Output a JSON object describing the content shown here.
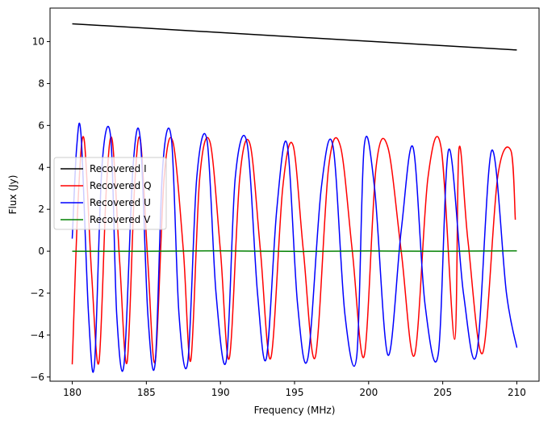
{
  "chart_data": {
    "type": "line",
    "title": "",
    "xlabel": "Frequency (MHz)",
    "ylabel": "Flux (Jy)",
    "xlim": [
      178.5,
      211.5
    ],
    "ylim": [
      -6.2,
      11.6
    ],
    "x_ticks": [
      180,
      185,
      190,
      195,
      200,
      205,
      210
    ],
    "y_ticks": [
      -6,
      -4,
      -2,
      0,
      2,
      4,
      6,
      8,
      10
    ],
    "x_range": [
      180,
      210
    ],
    "legend_position": "center-left",
    "grid": false,
    "series": [
      {
        "name": "Recovered I",
        "color": "#000000",
        "x": [
          180,
          210
        ],
        "values": [
          10.85,
          9.6
        ]
      },
      {
        "name": "Recovered Q",
        "color": "#ff0000",
        "x": [
          180.0,
          180.4,
          180.8,
          181.3,
          181.8,
          182.3,
          182.7,
          183.2,
          183.7,
          184.2,
          184.6,
          185.1,
          185.6,
          186.2,
          186.8,
          187.5,
          188.0,
          188.6,
          189.3,
          190.0,
          190.6,
          191.3,
          192.0,
          192.7,
          193.4,
          194.2,
          194.9,
          195.6,
          196.4,
          197.3,
          198.1,
          198.9,
          199.7,
          200.5,
          201.3,
          202.2,
          203.1,
          204.0,
          204.9,
          205.8,
          206.1,
          206.7,
          207.7,
          208.7,
          209.6,
          209.9
        ],
        "values": [
          -5.4,
          2.5,
          5.35,
          -1.0,
          -5.3,
          3.0,
          5.3,
          -0.5,
          -5.3,
          3.0,
          5.3,
          -0.5,
          -5.25,
          3.5,
          5.2,
          0.0,
          -5.2,
          3.5,
          5.2,
          0.0,
          -5.1,
          3.5,
          5.1,
          0.0,
          -5.1,
          3.0,
          5.05,
          0.0,
          -5.05,
          4.0,
          5.0,
          0.0,
          -5.0,
          4.0,
          4.95,
          0.0,
          -4.95,
          3.5,
          4.9,
          -4.2,
          4.9,
          0.5,
          -4.85,
          3.5,
          4.8,
          1.5
        ]
      },
      {
        "name": "Recovered U",
        "color": "#0000ff",
        "x": [
          180.0,
          180.3,
          180.6,
          181.1,
          181.5,
          182.0,
          182.6,
          183.0,
          183.5,
          184.1,
          184.6,
          185.1,
          185.6,
          186.1,
          186.7,
          187.2,
          187.8,
          188.4,
          189.1,
          189.7,
          190.4,
          191.0,
          191.8,
          192.5,
          193.1,
          193.8,
          194.5,
          195.2,
          195.9,
          196.8,
          197.6,
          198.4,
          199.2,
          199.7,
          200.4,
          201.3,
          202.2,
          203.0,
          203.8,
          204.7,
          205.4,
          206.4,
          207.3,
          208.3,
          209.3,
          210.0
        ],
        "values": [
          0.6,
          5.0,
          5.45,
          -3.0,
          -5.4,
          4.0,
          5.4,
          -3.0,
          -5.35,
          4.0,
          5.3,
          -3.0,
          -5.3,
          4.0,
          5.3,
          -3.0,
          -5.25,
          3.5,
          5.25,
          -2.0,
          -5.2,
          3.5,
          5.15,
          -2.0,
          -5.1,
          2.0,
          5.1,
          -2.5,
          -5.1,
          3.0,
          5.0,
          -3.0,
          -5.0,
          5.0,
          3.0,
          -4.95,
          1.0,
          4.95,
          -2.5,
          -4.9,
          4.85,
          -2.0,
          -4.85,
          4.8,
          -2.0,
          -4.6
        ]
      },
      {
        "name": "Recovered V",
        "color": "#008000",
        "x": [
          180,
          185,
          190,
          195,
          200,
          205,
          210
        ],
        "values": [
          0.0,
          0.0,
          0.02,
          -0.01,
          0.01,
          0.0,
          0.02
        ]
      }
    ]
  }
}
